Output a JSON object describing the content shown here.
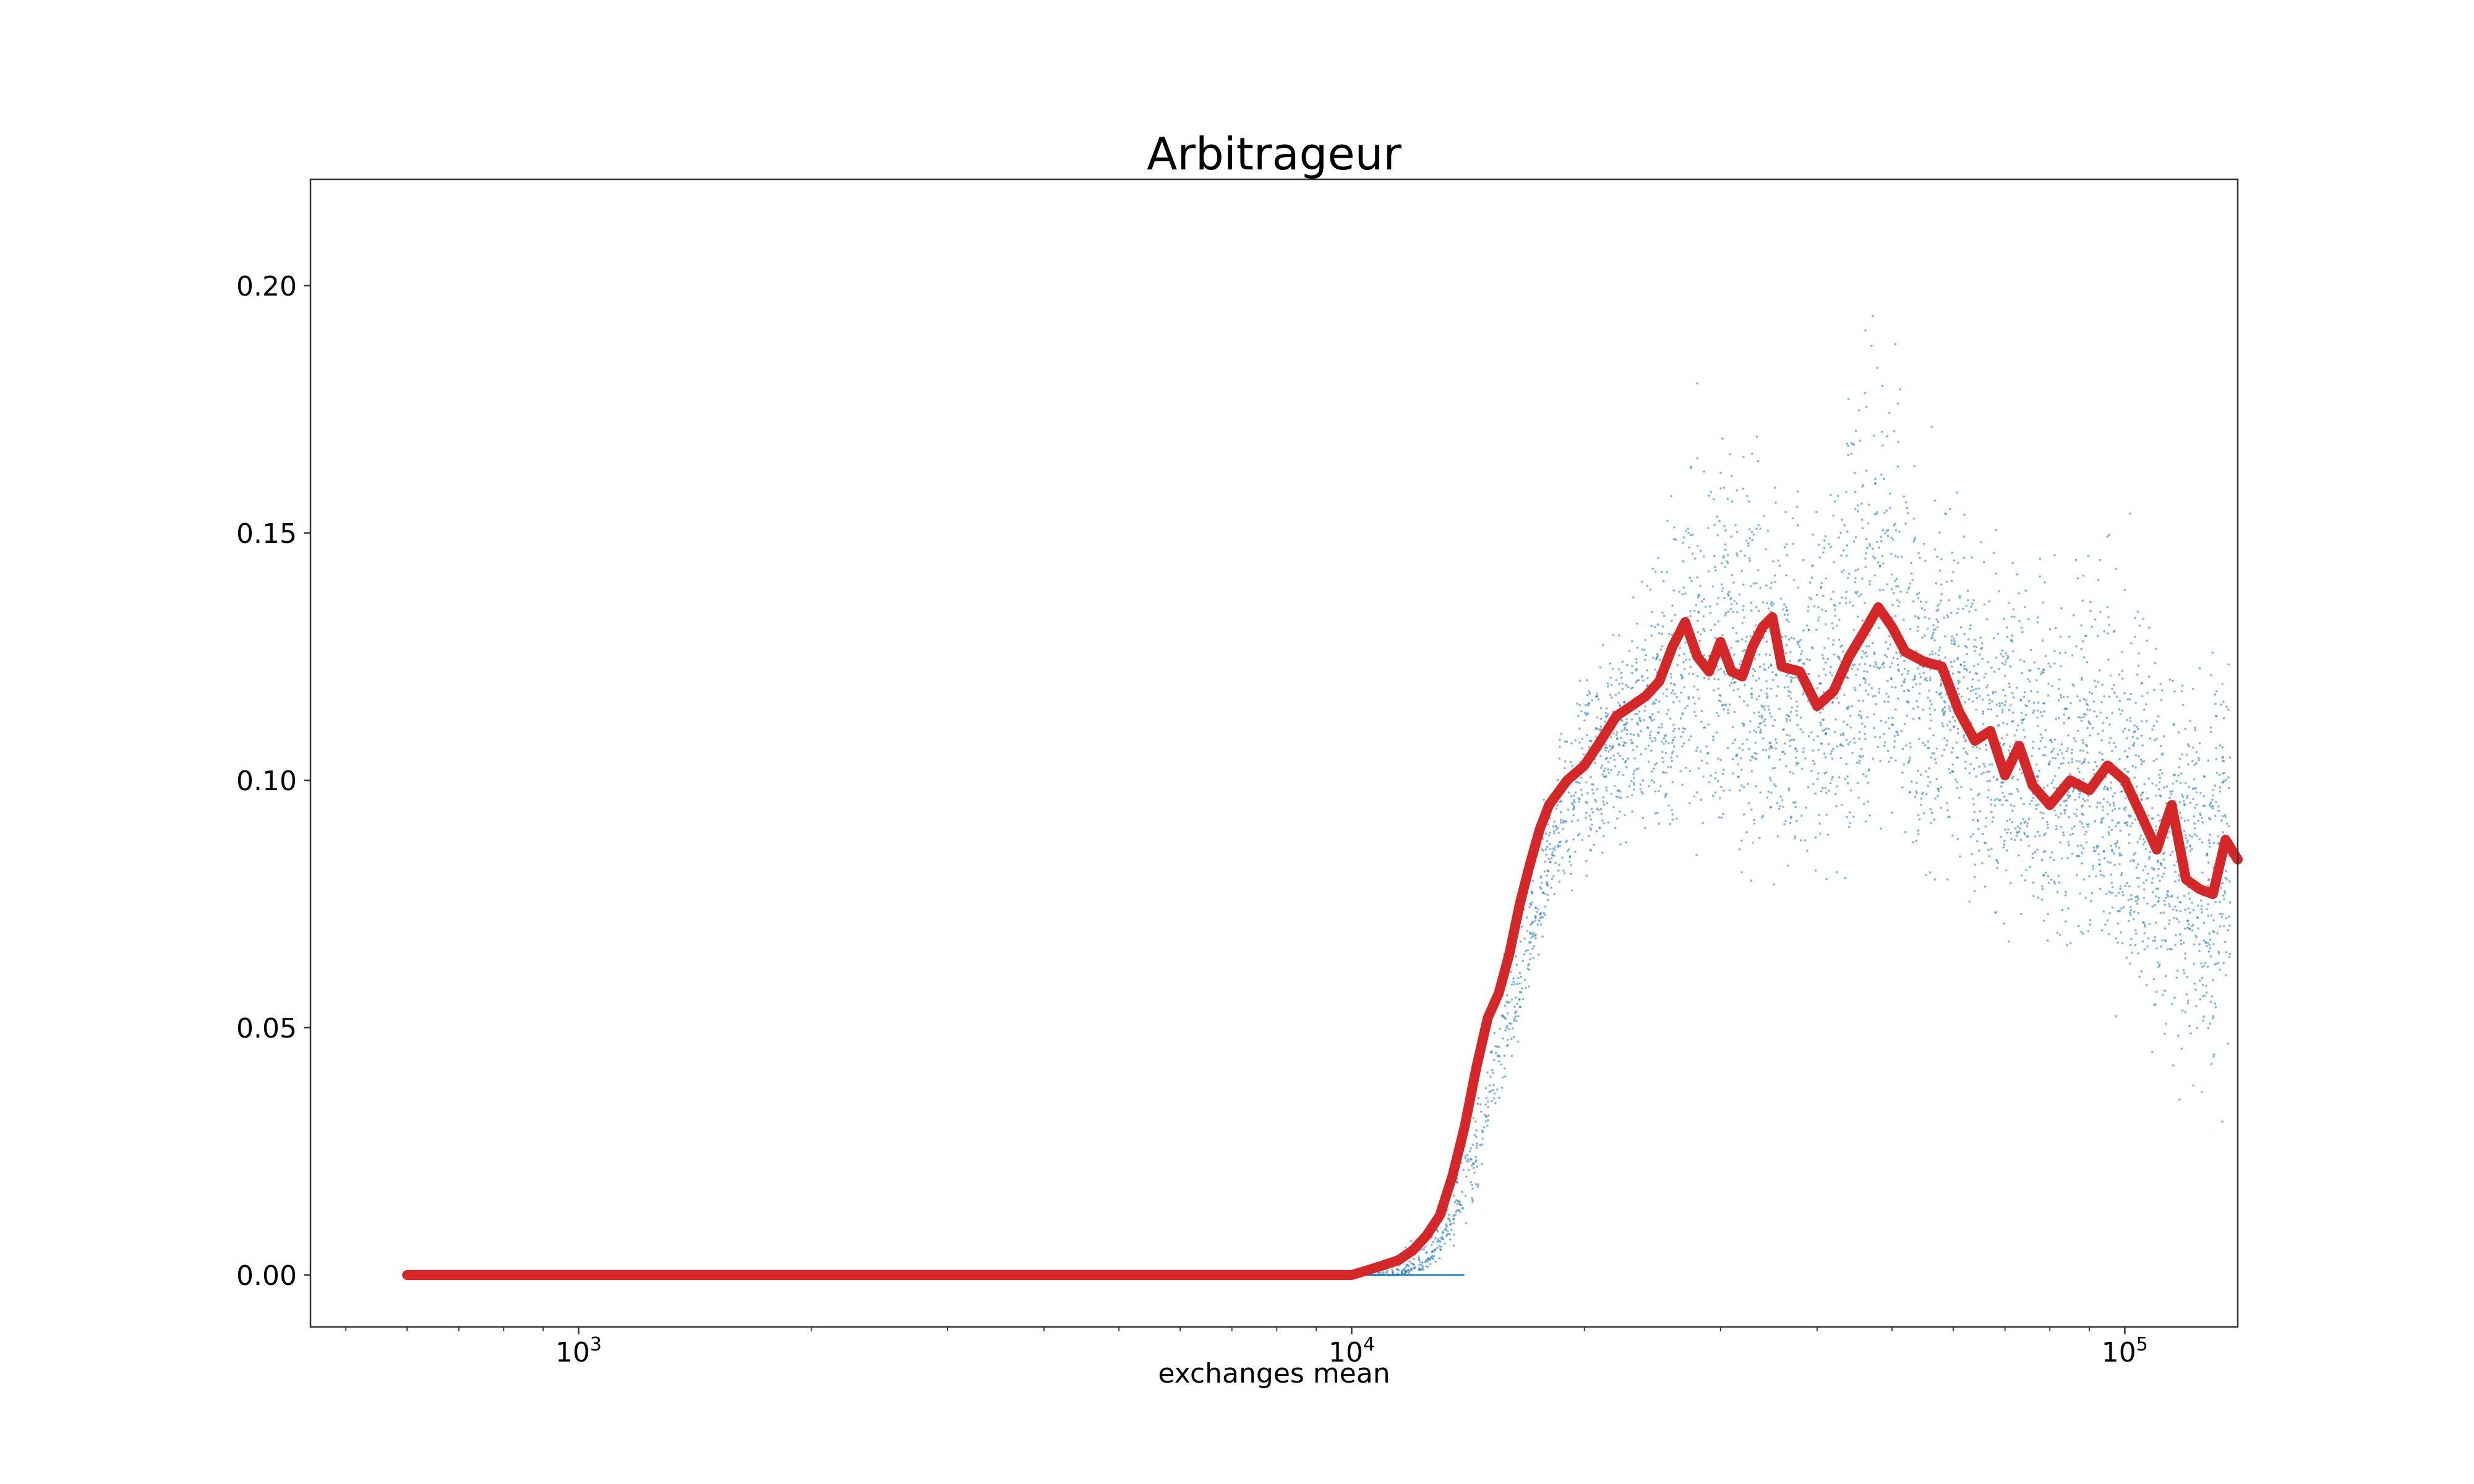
{
  "chart_data": {
    "type": "scatter",
    "title": "Arbitrageur",
    "xlabel": "exchanges mean",
    "ylabel": "",
    "xscale": "log",
    "xlim": [
      450,
      140000
    ],
    "ylim": [
      -0.0105,
      0.2215
    ],
    "x_ticks": [
      {
        "value": 1000,
        "base": "10",
        "exp": "3"
      },
      {
        "value": 10000,
        "base": "10",
        "exp": "4"
      },
      {
        "value": 100000,
        "base": "10",
        "exp": "5"
      }
    ],
    "y_ticks": [
      {
        "value": 0.0,
        "label": "0.00"
      },
      {
        "value": 0.05,
        "label": "0.05"
      },
      {
        "value": 0.1,
        "label": "0.10"
      },
      {
        "value": 0.15,
        "label": "0.15"
      },
      {
        "value": 0.2,
        "label": "0.20"
      }
    ],
    "grid": false,
    "legend": "none",
    "colors": {
      "scatter": "#1f77b4",
      "line": "#d62728",
      "axes": "#333333"
    },
    "series": [
      {
        "kind": "scatter",
        "note_points": "dense cloud of small markers; envelope estimated from figure",
        "envelope": [
          [
            10000,
            0.0,
            0.0,
            0.0
          ],
          [
            11500,
            0.0,
            0.0,
            0.005
          ],
          [
            12500,
            0.0,
            0.003,
            0.012
          ],
          [
            13500,
            0.004,
            0.012,
            0.025
          ],
          [
            14500,
            0.012,
            0.025,
            0.045
          ],
          [
            15500,
            0.03,
            0.045,
            0.065
          ],
          [
            16500,
            0.045,
            0.06,
            0.085
          ],
          [
            17500,
            0.06,
            0.075,
            0.1
          ],
          [
            18500,
            0.07,
            0.09,
            0.115
          ],
          [
            20000,
            0.075,
            0.1,
            0.13
          ],
          [
            22500,
            0.08,
            0.11,
            0.14
          ],
          [
            25000,
            0.085,
            0.115,
            0.155
          ],
          [
            27500,
            0.08,
            0.125,
            0.185
          ],
          [
            30000,
            0.075,
            0.125,
            0.185
          ],
          [
            33000,
            0.07,
            0.125,
            0.175
          ],
          [
            36000,
            0.065,
            0.12,
            0.165
          ],
          [
            40000,
            0.07,
            0.115,
            0.175
          ],
          [
            45000,
            0.075,
            0.125,
            0.2
          ],
          [
            48000,
            0.08,
            0.13,
            0.21
          ],
          [
            52000,
            0.075,
            0.125,
            0.19
          ],
          [
            58000,
            0.07,
            0.12,
            0.17
          ],
          [
            65000,
            0.065,
            0.11,
            0.16
          ],
          [
            72000,
            0.06,
            0.105,
            0.155
          ],
          [
            80000,
            0.055,
            0.1,
            0.15
          ],
          [
            90000,
            0.05,
            0.1,
            0.16
          ],
          [
            100000,
            0.045,
            0.095,
            0.16
          ],
          [
            110000,
            0.035,
            0.085,
            0.145
          ],
          [
            120000,
            0.025,
            0.08,
            0.14
          ],
          [
            130000,
            0.02,
            0.08,
            0.145
          ],
          [
            137000,
            0.018,
            0.085,
            0.15
          ]
        ]
      },
      {
        "kind": "line",
        "x": [
          600,
          1000,
          3000,
          10000,
          10500,
          11000,
          11500,
          12000,
          12500,
          13000,
          13500,
          14000,
          14500,
          15000,
          15500,
          16000,
          16500,
          17000,
          17500,
          18000,
          19000,
          20000,
          21000,
          22000,
          23000,
          24000,
          25000,
          26000,
          27000,
          28000,
          29000,
          30000,
          31000,
          32000,
          33000,
          34000,
          35000,
          36000,
          38000,
          40000,
          42000,
          44000,
          46000,
          48000,
          50000,
          52000,
          55000,
          58000,
          61000,
          64000,
          67000,
          70000,
          73000,
          76000,
          80000,
          85000,
          90000,
          95000,
          100000,
          105000,
          110000,
          115000,
          120000,
          125000,
          130000,
          135000,
          140000
        ],
        "y": [
          0.0,
          0.0,
          0.0,
          0.0,
          0.001,
          0.002,
          0.003,
          0.005,
          0.008,
          0.012,
          0.02,
          0.03,
          0.042,
          0.052,
          0.057,
          0.065,
          0.075,
          0.083,
          0.09,
          0.095,
          0.1,
          0.103,
          0.108,
          0.113,
          0.115,
          0.117,
          0.12,
          0.127,
          0.132,
          0.125,
          0.122,
          0.128,
          0.122,
          0.121,
          0.127,
          0.131,
          0.133,
          0.123,
          0.122,
          0.115,
          0.118,
          0.125,
          0.13,
          0.135,
          0.131,
          0.126,
          0.124,
          0.123,
          0.114,
          0.108,
          0.11,
          0.101,
          0.107,
          0.099,
          0.095,
          0.1,
          0.098,
          0.103,
          0.1,
          0.093,
          0.086,
          0.095,
          0.08,
          0.078,
          0.077,
          0.088,
          0.084
        ]
      }
    ]
  }
}
